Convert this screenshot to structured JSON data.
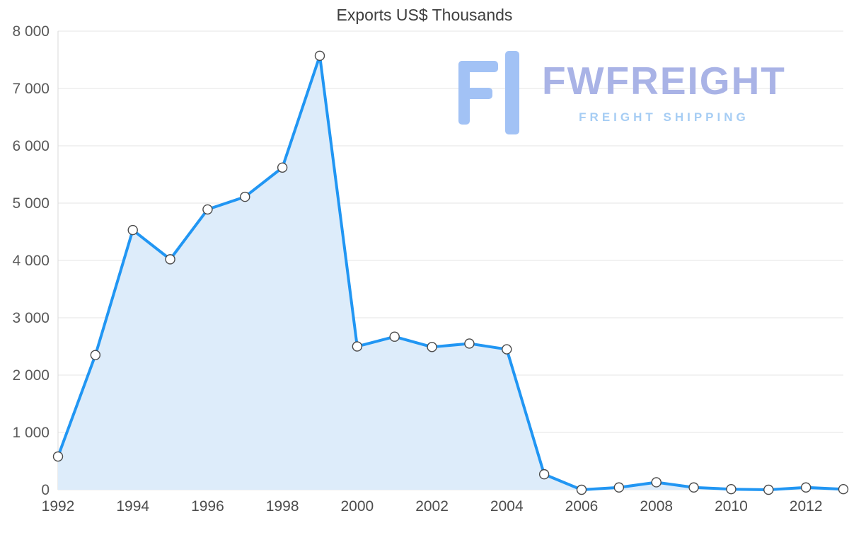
{
  "chart_data": {
    "type": "area",
    "title": "Exports US$ Thousands",
    "xlabel": "",
    "ylabel": "",
    "x": [
      1992,
      1993,
      1994,
      1995,
      1996,
      1997,
      1998,
      1999,
      2000,
      2001,
      2002,
      2003,
      2004,
      2005,
      2006,
      2007,
      2008,
      2009,
      2010,
      2011,
      2012,
      2013
    ],
    "values": [
      580,
      2350,
      4530,
      4020,
      4890,
      5110,
      5620,
      7570,
      2500,
      2670,
      2490,
      2550,
      2450,
      270,
      0,
      40,
      130,
      40,
      10,
      0,
      40,
      10
    ],
    "ylim": [
      0,
      8000
    ],
    "ytick_step": 1000,
    "ytick_labels": [
      "0",
      "1 000",
      "2 000",
      "3 000",
      "4 000",
      "5 000",
      "6 000",
      "7 000",
      "8 000"
    ],
    "xtick_labels": [
      "1992",
      "1994",
      "1996",
      "1998",
      "2000",
      "2002",
      "2004",
      "2006",
      "2008",
      "2010",
      "2012"
    ],
    "xtick_step": 2,
    "grid": true,
    "legend": "none",
    "line_color": "#2196f3",
    "fill_color": "#ddecfa",
    "marker_fill": "#ffffff",
    "marker_stroke": "#4a4a4a"
  },
  "watermark": {
    "brand": "FWFREIGHT",
    "tagline": "FREIGHT SHIPPING",
    "brand_color": "#a9b3e6",
    "tagline_color": "#a6cdf4",
    "logo_color": "#a2c2f5",
    "logo_name": "fwfreight-logo"
  }
}
